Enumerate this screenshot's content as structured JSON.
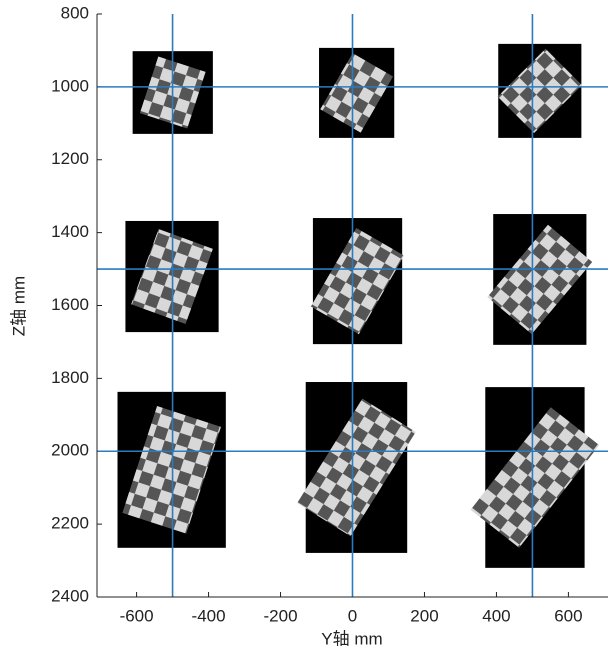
{
  "chart_data": {
    "type": "image-grid",
    "x_label": "Y轴 mm",
    "y_label": "Z轴 mm",
    "xlim": [
      -710,
      710
    ],
    "ylim": [
      800,
      2400
    ],
    "y_reversed": true,
    "xticks": [
      -600,
      -400,
      -200,
      0,
      200,
      400,
      600
    ],
    "yticks": [
      800,
      1000,
      1200,
      1400,
      1600,
      1800,
      2000,
      2200,
      2400
    ],
    "line_color": "#2b7bbf",
    "vlines": [
      -500,
      0,
      500
    ],
    "hlines": [
      1000,
      1500,
      2000
    ],
    "images": [
      {
        "xlim": [
          -611,
          -388
        ],
        "zlim": [
          902,
          1129
        ]
      },
      {
        "xlim": [
          -93,
          116
        ],
        "zlim": [
          893,
          1140
        ]
      },
      {
        "xlim": [
          405,
          636
        ],
        "zlim": [
          882,
          1140
        ]
      },
      {
        "xlim": [
          -631,
          -372
        ],
        "zlim": [
          1368,
          1673
        ]
      },
      {
        "xlim": [
          -110,
          138
        ],
        "zlim": [
          1360,
          1706
        ]
      },
      {
        "xlim": [
          391,
          650
        ],
        "zlim": [
          1349,
          1708
        ]
      },
      {
        "xlim": [
          -653,
          -352
        ],
        "zlim": [
          1837,
          2265
        ]
      },
      {
        "xlim": [
          -130,
          152
        ],
        "zlim": [
          1810,
          2279
        ]
      },
      {
        "xlim": [
          369,
          645
        ],
        "zlim": [
          1824,
          2320
        ]
      }
    ]
  }
}
